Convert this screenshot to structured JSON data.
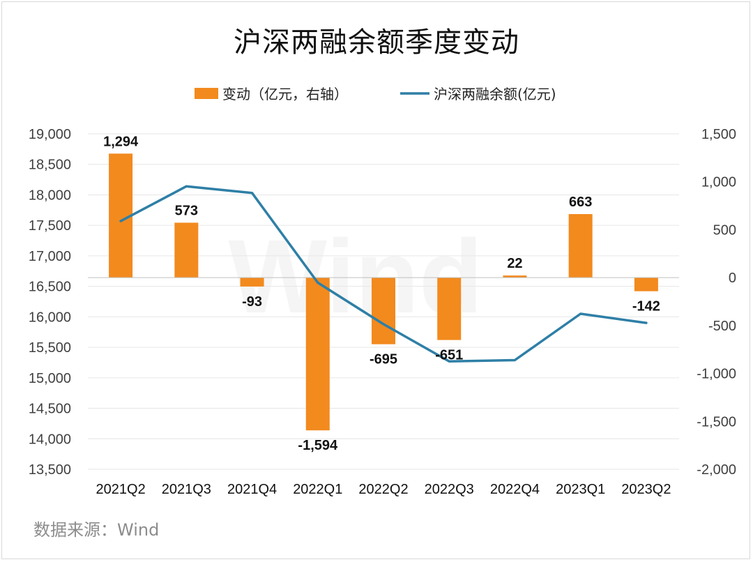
{
  "title": "沪深两融余额季度变动",
  "source": "数据来源：Wind",
  "watermark": "Wind",
  "colors": {
    "bar": "#f28a1e",
    "line": "#2e7fa6",
    "grid": "#e6e6e6"
  },
  "legend": [
    {
      "label": "变动（亿元，右轴）",
      "kind": "bar"
    },
    {
      "label": "沪深两融余额(亿元)",
      "kind": "line"
    }
  ],
  "chart_data": {
    "type": "bar+line",
    "title": "沪深两融余额季度变动",
    "categories": [
      "2021Q2",
      "2021Q3",
      "2021Q4",
      "2022Q1",
      "2022Q2",
      "2022Q3",
      "2022Q4",
      "2023Q1",
      "2023Q2"
    ],
    "series": [
      {
        "name": "变动（亿元，右轴）",
        "type": "bar",
        "axis": "right",
        "values": [
          1294,
          573,
          -93,
          -1594,
          -695,
          -651,
          22,
          663,
          -142
        ],
        "labels": [
          "1,294",
          "573",
          "-93",
          "-1,594",
          "-695",
          "-651",
          "22",
          "663",
          "-142"
        ]
      },
      {
        "name": "沪深两融余额(亿元)",
        "type": "line",
        "axis": "left",
        "values": [
          17570,
          18140,
          18030,
          16560,
          15880,
          15270,
          15290,
          16050,
          15900
        ]
      }
    ],
    "y_left": {
      "lim": [
        13500,
        19000
      ],
      "ticks": [
        13500,
        14000,
        14500,
        15000,
        15500,
        16000,
        16500,
        17000,
        17500,
        18000,
        18500,
        19000
      ],
      "tick_labels": [
        "13,500",
        "14,000",
        "14,500",
        "15,000",
        "15,500",
        "16,000",
        "16,500",
        "17,000",
        "17,500",
        "18,000",
        "18,500",
        "19,000"
      ]
    },
    "y_right": {
      "lim": [
        -2000,
        1500
      ],
      "ticks": [
        -2000,
        -1500,
        -1000,
        -500,
        0,
        500,
        1000,
        1500
      ],
      "tick_labels": [
        "-2,000",
        "-1,500",
        "-1,000",
        "-500",
        "0",
        "500",
        "1,000",
        "1,500"
      ]
    },
    "grid": true,
    "legend_position": "top"
  }
}
